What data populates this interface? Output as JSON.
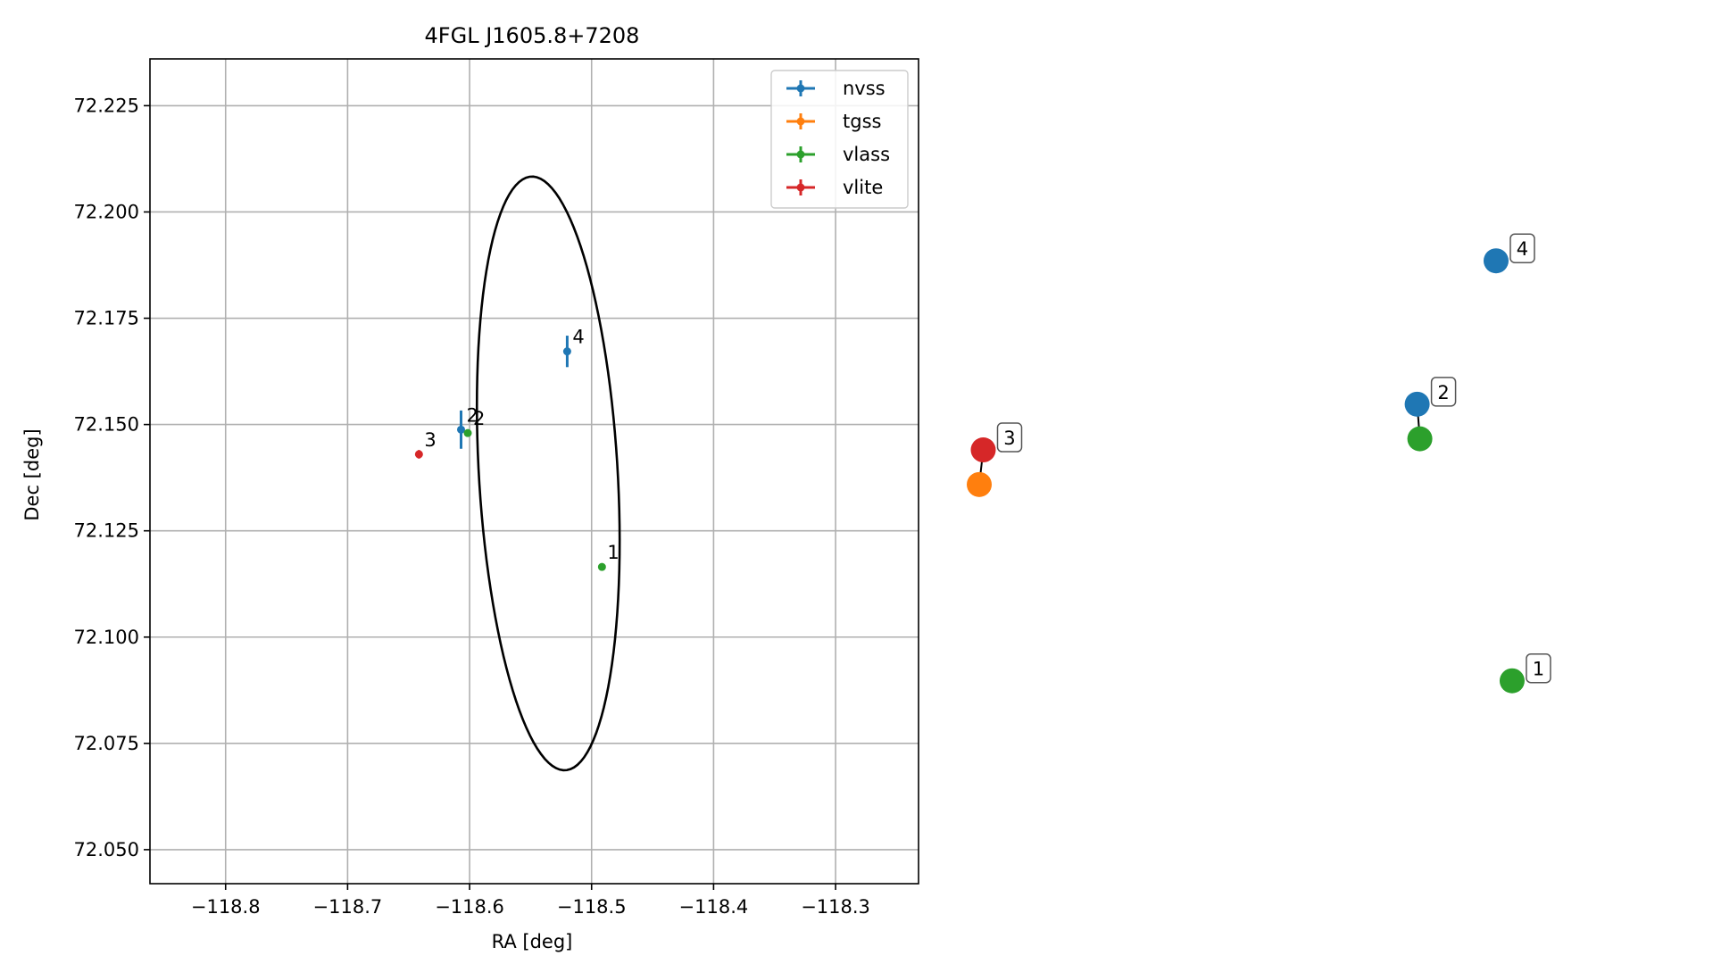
{
  "chart_data": [
    {
      "type": "scatter",
      "title": "4FGL J1605.8+7208",
      "xlabel": "RA [deg]",
      "ylabel": "Dec [deg]",
      "xlim": [
        -118.862,
        -118.232
      ],
      "ylim": [
        72.042,
        72.236
      ],
      "grid": true,
      "legend_placement": "top-right",
      "x_ticks": [
        -118.8,
        -118.7,
        -118.6,
        -118.5,
        -118.4,
        -118.3
      ],
      "x_tick_labels": [
        "−118.8",
        "−118.7",
        "−118.6",
        "−118.5",
        "−118.4",
        "−118.3"
      ],
      "y_ticks": [
        72.05,
        72.075,
        72.1,
        72.125,
        72.15,
        72.175,
        72.2,
        72.225
      ],
      "y_tick_labels": [
        "72.050",
        "72.075",
        "72.100",
        "72.125",
        "72.150",
        "72.175",
        "72.200",
        "72.225"
      ],
      "ellipse": {
        "center": [
          -118.5355,
          72.1385
        ],
        "semi_major": 0.073,
        "semi_minor": 0.0545,
        "angle_deg": -64,
        "color": "#000000"
      },
      "series": [
        {
          "name": "nvss",
          "color": "#1f77b4",
          "points": [
            {
              "label": "2",
              "x": -118.607,
              "y": 72.1488,
              "yerr": 0.0045
            },
            {
              "label": "4",
              "x": -118.52,
              "y": 72.1672,
              "yerr": 0.0037
            }
          ]
        },
        {
          "name": "tgss",
          "color": "#ff7f0e",
          "points": []
        },
        {
          "name": "vlass",
          "color": "#2ca02c",
          "points": [
            {
              "label": "2",
              "x": -118.6015,
              "y": 72.148,
              "yerr": 0.0005
            },
            {
              "label": "1",
              "x": -118.4915,
              "y": 72.1165,
              "yerr": 0.0005
            }
          ]
        },
        {
          "name": "vlite",
          "color": "#d62728",
          "points": [
            {
              "label": "3",
              "x": -118.6415,
              "y": 72.143,
              "yerr": 0.001
            }
          ]
        }
      ]
    },
    {
      "type": "network",
      "nodes": [
        {
          "id": "4",
          "color": "#1f77b4",
          "x": 0.773,
          "y": 0.918,
          "label": "4"
        },
        {
          "id": "2",
          "color": "#1f77b4",
          "x": 0.655,
          "y": 0.62,
          "label": "2"
        },
        {
          "id": "2-vlass",
          "color": "#2ca02c",
          "x": 0.659,
          "y": 0.548,
          "label": ""
        },
        {
          "id": "3",
          "color": "#d62728",
          "x": 0.006,
          "y": 0.525,
          "label": "3"
        },
        {
          "id": "3-tgss",
          "color": "#ff7f0e",
          "x": 0.0,
          "y": 0.453,
          "label": ""
        },
        {
          "id": "1",
          "color": "#2ca02c",
          "x": 0.797,
          "y": 0.045,
          "label": "1"
        }
      ],
      "edges": [
        {
          "from": "2",
          "to": "2-vlass"
        },
        {
          "from": "3",
          "to": "3-tgss"
        }
      ]
    }
  ]
}
